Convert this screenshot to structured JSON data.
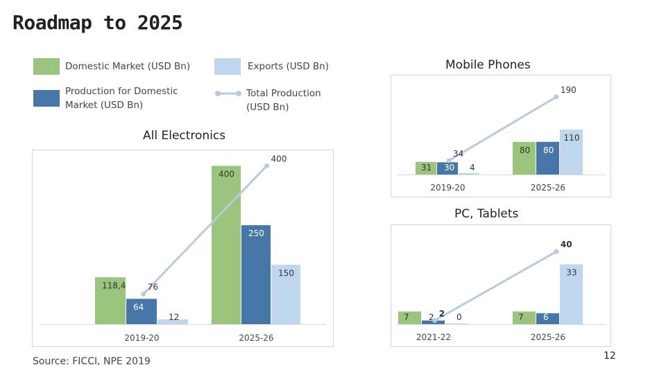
{
  "page_title": "Roadmap to 2025",
  "legend": {
    "domestic": "Domestic Market (USD Bn)",
    "exports": "Exports (USD Bn)",
    "production": "Production for Domestic Market (USD Bn)",
    "total": "Total Production (USD Bn)"
  },
  "colors": {
    "domestic": "#9bc57d",
    "production": "#4677a8",
    "exports": "#bed7ef",
    "total": "#b8cadf"
  },
  "footer": {
    "source": "Source: FICCI, NPE 2019",
    "page_number": "12"
  },
  "chart_data": [
    {
      "id": "all",
      "type": "bar",
      "title": "All Electronics",
      "categories": [
        "2019-20",
        "2025-26"
      ],
      "series": [
        {
          "name": "Domestic Market (USD Bn)",
          "key": "domestic",
          "values": [
            118.4,
            400
          ],
          "labels": [
            "118,4",
            "400"
          ]
        },
        {
          "name": "Production for Domestic Market (USD Bn)",
          "key": "production",
          "values": [
            64,
            250
          ],
          "labels": [
            "64",
            "250"
          ]
        },
        {
          "name": "Exports (USD Bn)",
          "key": "exports",
          "values": [
            12,
            150
          ],
          "labels": [
            "12",
            "150"
          ]
        }
      ],
      "line": {
        "name": "Total Production (USD Bn)",
        "values": [
          76,
          400
        ],
        "labels": [
          "76",
          "400"
        ]
      },
      "ylim": [
        0,
        420
      ],
      "grid": false
    },
    {
      "id": "mobile",
      "type": "bar",
      "title": "Mobile Phones",
      "categories": [
        "2019-20",
        "2025-26"
      ],
      "series": [
        {
          "name": "Domestic Market (USD Bn)",
          "key": "domestic",
          "values": [
            31,
            80
          ],
          "labels": [
            "31",
            "80"
          ]
        },
        {
          "name": "Production for Domestic Market (USD Bn)",
          "key": "production",
          "values": [
            30,
            80
          ],
          "labels": [
            "30",
            "80"
          ]
        },
        {
          "name": "Exports (USD Bn)",
          "key": "exports",
          "values": [
            4,
            110
          ],
          "labels": [
            "4",
            "110"
          ]
        }
      ],
      "line": {
        "name": "Total Production (USD Bn)",
        "values": [
          34,
          190
        ],
        "labels": [
          "34",
          "190"
        ]
      },
      "ylim": [
        0,
        200
      ],
      "grid": false
    },
    {
      "id": "pc",
      "type": "bar",
      "title": "PC, Tablets",
      "categories": [
        "2021-22",
        "2025-26"
      ],
      "series": [
        {
          "name": "Domestic Market (USD Bn)",
          "key": "domestic",
          "values": [
            7,
            7
          ],
          "labels": [
            "7",
            "7"
          ]
        },
        {
          "name": "Production for Domestic Market (USD Bn)",
          "key": "production",
          "values": [
            2,
            6
          ],
          "labels": [
            "2",
            "6"
          ]
        },
        {
          "name": "Exports (USD Bn)",
          "key": "exports",
          "values": [
            0,
            33
          ],
          "labels": [
            "0",
            "33"
          ]
        }
      ],
      "line": {
        "name": "Total Production (USD Bn)",
        "values": [
          2,
          40
        ],
        "labels": [
          "2",
          "40"
        ]
      },
      "ylim": [
        0,
        42
      ],
      "grid": false
    }
  ]
}
